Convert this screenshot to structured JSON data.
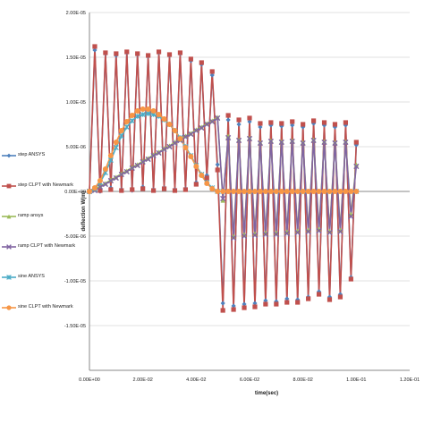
{
  "chart_data": {
    "type": "line",
    "title": "",
    "xlabel": "time(sec)",
    "ylabel": "deflection W(m)",
    "xlim": [
      0,
      0.12
    ],
    "ylim": [
      -2e-05,
      2e-05
    ],
    "x_ticks": [
      0,
      0.02,
      0.04,
      0.06,
      0.08,
      0.1,
      0.12
    ],
    "x_tick_labels": [
      "0.00E+00",
      "2.00E-02",
      "4.00E-02",
      "6.00E-02",
      "8.00E-02",
      "1.00E-01",
      "1.20E-01"
    ],
    "y_ticks": [
      2e-05,
      1.5e-05,
      1e-05,
      5e-06,
      0,
      -5e-06,
      -1e-05,
      -1.5e-05
    ],
    "y_tick_labels": [
      "2.00E-05",
      "1.50E-05",
      "1.00E-05",
      "5.00E-06",
      "0.00E+00",
      "-5.00E-06",
      "-1.00E-05",
      "-1.50E-05"
    ],
    "grid": "horizontal",
    "legend_position": "left",
    "series": [
      {
        "name": "step ANSYS",
        "color": "#4f81bd",
        "marker": "diamond",
        "x": [
          0,
          0.002,
          0.004,
          0.006,
          0.008,
          0.01,
          0.012,
          0.014,
          0.016,
          0.018,
          0.02,
          0.022,
          0.024,
          0.026,
          0.028,
          0.03,
          0.032,
          0.034,
          0.036,
          0.038,
          0.04,
          0.042,
          0.044,
          0.046,
          0.048,
          0.05,
          0.052,
          0.054,
          0.056,
          0.058,
          0.06,
          0.062,
          0.064,
          0.066,
          0.068,
          0.07,
          0.072,
          0.074,
          0.076,
          0.078,
          0.08,
          0.082,
          0.084,
          0.086,
          0.088,
          0.09,
          0.092,
          0.094,
          0.096,
          0.098,
          0.1
        ],
        "y": [
          0,
          1.58e-05,
          0,
          1.54e-05,
          4e-07,
          1.52e-05,
          2e-07,
          1.55e-05,
          1e-07,
          1.53e-05,
          5e-07,
          1.51e-05,
          2e-07,
          1.55e-05,
          4e-07,
          1.52e-05,
          2e-07,
          1.54e-05,
          3e-07,
          1.46e-05,
          1e-06,
          1.42e-05,
          1.8e-06,
          1.3e-05,
          3e-06,
          -1.25e-05,
          8e-06,
          -1.28e-05,
          7.5e-06,
          -1.26e-05,
          7.8e-06,
          -1.25e-05,
          7.2e-06,
          -1.22e-05,
          7.4e-06,
          -1.23e-05,
          7.3e-06,
          -1.2e-05,
          7.4e-06,
          -1.21e-05,
          7.2e-06,
          -1.18e-05,
          7.6e-06,
          -1.12e-05,
          7.4e-06,
          -1.18e-05,
          7.2e-06,
          -1.15e-05,
          7.4e-06,
          -9.6e-06,
          5.2e-06
        ]
      },
      {
        "name": "step CLPT with Newmark",
        "color": "#c0504d",
        "marker": "square",
        "x": [
          0,
          0.002,
          0.004,
          0.006,
          0.008,
          0.01,
          0.012,
          0.014,
          0.016,
          0.018,
          0.02,
          0.022,
          0.024,
          0.026,
          0.028,
          0.03,
          0.032,
          0.034,
          0.036,
          0.038,
          0.04,
          0.042,
          0.044,
          0.046,
          0.048,
          0.05,
          0.052,
          0.054,
          0.056,
          0.058,
          0.06,
          0.062,
          0.064,
          0.066,
          0.068,
          0.07,
          0.072,
          0.074,
          0.076,
          0.078,
          0.08,
          0.082,
          0.084,
          0.086,
          0.088,
          0.09,
          0.092,
          0.094,
          0.096,
          0.098,
          0.1
        ],
        "y": [
          0,
          1.62e-05,
          1e-07,
          1.55e-05,
          2e-07,
          1.54e-05,
          1e-07,
          1.56e-05,
          2e-07,
          1.54e-05,
          3e-07,
          1.52e-05,
          1e-07,
          1.56e-05,
          3e-07,
          1.53e-05,
          1e-07,
          1.55e-05,
          2e-07,
          1.48e-05,
          8e-07,
          1.44e-05,
          1.5e-06,
          1.34e-05,
          2.4e-06,
          -1.33e-05,
          8.5e-06,
          -1.32e-05,
          8e-06,
          -1.3e-05,
          8.2e-06,
          -1.29e-05,
          7.6e-06,
          -1.26e-05,
          7.7e-06,
          -1.26e-05,
          7.6e-06,
          -1.24e-05,
          7.8e-06,
          -1.24e-05,
          7.5e-06,
          -1.2e-05,
          7.9e-06,
          -1.15e-05,
          7.7e-06,
          -1.21e-05,
          7.5e-06,
          -1.18e-05,
          7.7e-06,
          -9.8e-06,
          5.5e-06
        ]
      },
      {
        "name": "ramp ansys",
        "color": "#9bbb59",
        "marker": "triangle",
        "x": [
          0,
          0.002,
          0.004,
          0.006,
          0.008,
          0.01,
          0.012,
          0.014,
          0.016,
          0.018,
          0.02,
          0.022,
          0.024,
          0.026,
          0.028,
          0.03,
          0.032,
          0.034,
          0.036,
          0.038,
          0.04,
          0.042,
          0.044,
          0.046,
          0.048,
          0.05,
          0.052,
          0.054,
          0.056,
          0.058,
          0.06,
          0.062,
          0.064,
          0.066,
          0.068,
          0.07,
          0.072,
          0.074,
          0.076,
          0.078,
          0.08,
          0.082,
          0.084,
          0.086,
          0.088,
          0.09,
          0.092,
          0.094,
          0.096,
          0.098,
          0.1
        ],
        "y": [
          0,
          2e-07,
          6e-07,
          9e-07,
          1.3e-06,
          1.6e-06,
          2e-06,
          2.3e-06,
          2.7e-06,
          3e-06,
          3.4e-06,
          3.7e-06,
          4.1e-06,
          4.4e-06,
          4.8e-06,
          5.1e-06,
          5.5e-06,
          5.8e-06,
          6.2e-06,
          6.5e-06,
          6.9e-06,
          7.2e-06,
          7.6e-06,
          7.9e-06,
          8.3e-06,
          -1e-06,
          6.2e-06,
          -5e-06,
          5.8e-06,
          -4.8e-06,
          6e-06,
          -4.7e-06,
          5.5e-06,
          -4.6e-06,
          5.7e-06,
          -4.6e-06,
          5.6e-06,
          -4.5e-06,
          5.7e-06,
          -4.4e-06,
          5.5e-06,
          -4.3e-06,
          5.8e-06,
          -4.2e-06,
          5.6e-06,
          -4.4e-06,
          5.5e-06,
          -4.3e-06,
          5.6e-06,
          -2.5e-06,
          3e-06
        ]
      },
      {
        "name": "ramp CLPT with Newmark",
        "color": "#8064a2",
        "marker": "x",
        "x": [
          0,
          0.002,
          0.004,
          0.006,
          0.008,
          0.01,
          0.012,
          0.014,
          0.016,
          0.018,
          0.02,
          0.022,
          0.024,
          0.026,
          0.028,
          0.03,
          0.032,
          0.034,
          0.036,
          0.038,
          0.04,
          0.042,
          0.044,
          0.046,
          0.048,
          0.05,
          0.052,
          0.054,
          0.056,
          0.058,
          0.06,
          0.062,
          0.064,
          0.066,
          0.068,
          0.07,
          0.072,
          0.074,
          0.076,
          0.078,
          0.08,
          0.082,
          0.084,
          0.086,
          0.088,
          0.09,
          0.092,
          0.094,
          0.096,
          0.098,
          0.1
        ],
        "y": [
          0,
          1e-07,
          5e-07,
          8e-07,
          1.2e-06,
          1.5e-06,
          1.9e-06,
          2.2e-06,
          2.6e-06,
          2.9e-06,
          3.3e-06,
          3.6e-06,
          4e-06,
          4.3e-06,
          4.7e-06,
          5e-06,
          5.4e-06,
          5.7e-06,
          6.1e-06,
          6.4e-06,
          6.8e-06,
          7.1e-06,
          7.5e-06,
          7.8e-06,
          8.2e-06,
          -8e-07,
          6e-06,
          -5.2e-06,
          5.7e-06,
          -5e-06,
          5.9e-06,
          -4.9e-06,
          5.4e-06,
          -4.8e-06,
          5.6e-06,
          -4.8e-06,
          5.5e-06,
          -4.7e-06,
          5.6e-06,
          -4.6e-06,
          5.4e-06,
          -4.5e-06,
          5.7e-06,
          -4.4e-06,
          5.5e-06,
          -4.6e-06,
          5.4e-06,
          -4.5e-06,
          5.5e-06,
          -2.8e-06,
          2.8e-06
        ]
      },
      {
        "name": "sine ANSYS",
        "color": "#4bacc6",
        "marker": "star",
        "x": [
          0,
          0.002,
          0.004,
          0.006,
          0.008,
          0.01,
          0.012,
          0.014,
          0.016,
          0.018,
          0.02,
          0.022,
          0.024,
          0.026,
          0.028,
          0.03,
          0.032,
          0.034,
          0.036,
          0.038,
          0.04,
          0.042,
          0.044,
          0.046,
          0.048,
          0.05,
          0.06,
          0.07,
          0.08,
          0.09,
          0.1
        ],
        "y": [
          0,
          3e-07,
          1e-06,
          2.1e-06,
          3.5e-06,
          4.9e-06,
          6.2e-06,
          7.2e-06,
          7.9e-06,
          8.4e-06,
          8.6e-06,
          8.7e-06,
          8.6e-06,
          8.4e-06,
          8e-06,
          7.5e-06,
          6.8e-06,
          6e-06,
          5e-06,
          4e-06,
          2.9e-06,
          1.9e-06,
          1e-06,
          4e-07,
          0,
          0,
          0,
          0,
          0,
          0,
          0
        ]
      },
      {
        "name": "sine CLPT with Newmark",
        "color": "#f79646",
        "marker": "circle",
        "x": [
          0,
          0.002,
          0.004,
          0.006,
          0.008,
          0.01,
          0.012,
          0.014,
          0.016,
          0.018,
          0.02,
          0.022,
          0.024,
          0.026,
          0.028,
          0.03,
          0.032,
          0.034,
          0.036,
          0.038,
          0.04,
          0.042,
          0.044,
          0.046,
          0.048,
          0.05,
          0.052,
          0.054,
          0.056,
          0.058,
          0.06,
          0.062,
          0.064,
          0.066,
          0.068,
          0.07,
          0.072,
          0.074,
          0.076,
          0.078,
          0.08,
          0.082,
          0.084,
          0.086,
          0.088,
          0.09,
          0.092,
          0.094,
          0.096,
          0.098,
          0.1
        ],
        "y": [
          0,
          4e-07,
          1.2e-06,
          2.5e-06,
          4e-06,
          5.5e-06,
          6.8e-06,
          7.8e-06,
          8.5e-06,
          9e-06,
          9.2e-06,
          9.2e-06,
          9e-06,
          8.6e-06,
          8.1e-06,
          7.5e-06,
          6.8e-06,
          5.9e-06,
          4.9e-06,
          3.9e-06,
          2.8e-06,
          1.8e-06,
          9e-07,
          3e-07,
          0,
          0,
          0,
          0,
          0,
          0,
          0,
          0,
          0,
          0,
          0,
          0,
          0,
          0,
          0,
          0,
          0,
          0,
          0,
          0,
          0,
          0,
          0,
          0,
          0,
          0,
          0
        ]
      }
    ]
  }
}
